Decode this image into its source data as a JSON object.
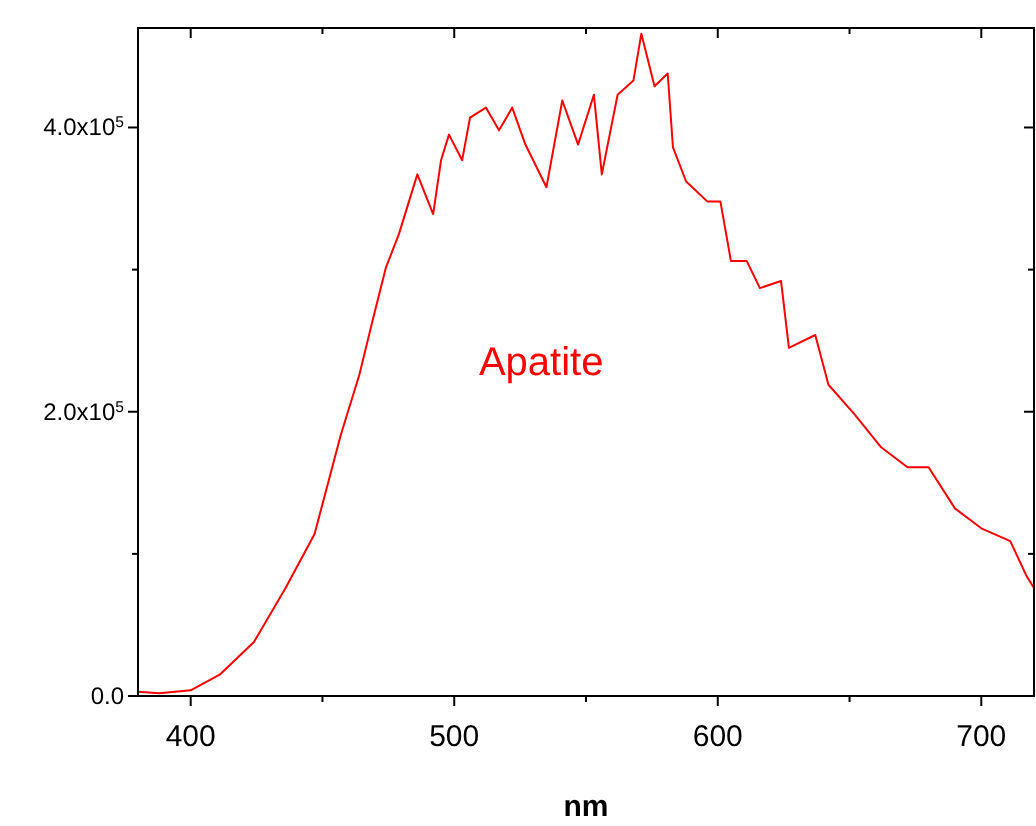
{
  "chart_data": {
    "type": "line",
    "xlabel": "nm",
    "annotations": [
      "Apatite"
    ],
    "xlim": [
      380,
      720
    ],
    "ylim": [
      0,
      470000
    ],
    "xticks": [
      400,
      {
        "value": 450,
        "label": null
      },
      500,
      {
        "value": 550,
        "label": null
      },
      600,
      {
        "value": 650,
        "label": null
      },
      700
    ],
    "yticks": [
      {
        "value": 0,
        "label": "0.0"
      },
      {
        "value": 100000,
        "label": null
      },
      {
        "value": 200000,
        "label": "2.0x10$^{5}$"
      },
      {
        "value": 300000,
        "label": null
      },
      {
        "value": 400000,
        "label": "4.0x10$^{5}$"
      }
    ],
    "grid": false,
    "marker": "none",
    "line_style": "solid",
    "series": [
      {
        "color": "#ff0000",
        "x": [
          380,
          388,
          400,
          411,
          424,
          436,
          447,
          457,
          464,
          469,
          474,
          479,
          486,
          492,
          495,
          498,
          503,
          506,
          512,
          517,
          522,
          527,
          535,
          541,
          547,
          553,
          556,
          562,
          568,
          571,
          576,
          581,
          583,
          588,
          596,
          601,
          605,
          611,
          616,
          624,
          627,
          637,
          642,
          652,
          662,
          672,
          680,
          690,
          700,
          711,
          717,
          720
        ],
        "values": [
          3000,
          2000,
          4000,
          15000,
          38000,
          76000,
          114000,
          184000,
          226000,
          264000,
          301000,
          325000,
          367000,
          339000,
          377000,
          395000,
          377000,
          407000,
          414000,
          398000,
          414000,
          388000,
          358000,
          419000,
          388000,
          423000,
          367000,
          423000,
          433000,
          466000,
          429000,
          438000,
          386000,
          362000,
          348000,
          348000,
          306000,
          306000,
          287000,
          292000,
          245000,
          254000,
          219000,
          198000,
          175000,
          161000,
          161000,
          132000,
          118000,
          109000,
          85000,
          76000
        ]
      }
    ]
  }
}
